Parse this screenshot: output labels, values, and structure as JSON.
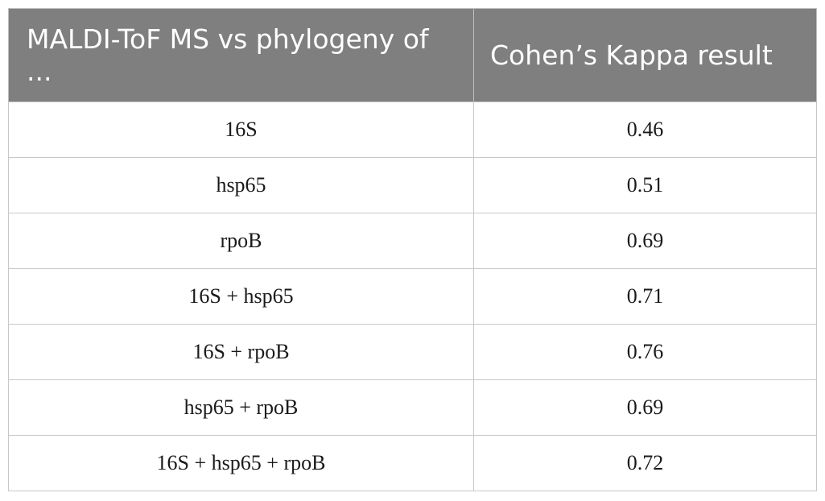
{
  "table": {
    "headers": [
      "MALDI-ToF MS vs phylogeny of ...",
      "Cohen’s Kappa result"
    ],
    "rows": [
      {
        "comparison": "16S",
        "kappa": "0.46"
      },
      {
        "comparison": "hsp65",
        "kappa": "0.51"
      },
      {
        "comparison": "rpoB",
        "kappa": "0.69"
      },
      {
        "comparison": "16S + hsp65",
        "kappa": "0.71"
      },
      {
        "comparison": "16S + rpoB",
        "kappa": "0.76"
      },
      {
        "comparison": "hsp65 + rpoB",
        "kappa": "0.69"
      },
      {
        "comparison": "16S + hsp65 + rpoB",
        "kappa": "0.72"
      }
    ]
  },
  "colors": {
    "header_bg": "#7f7f7f",
    "header_text": "#ffffff",
    "border": "#c8c8c8"
  }
}
